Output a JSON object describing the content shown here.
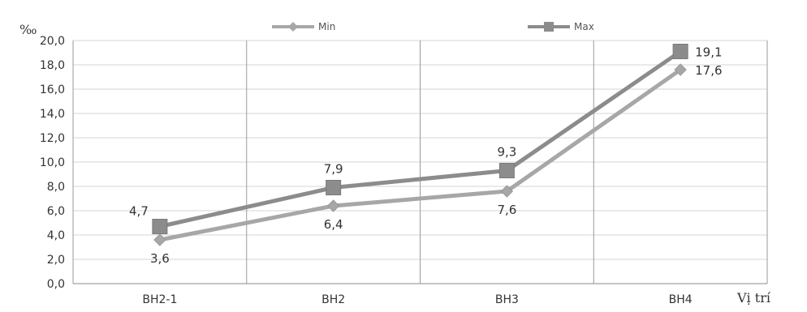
{
  "chart_data": {
    "type": "line",
    "ylabel": "‰",
    "xlabel": "Vị trí",
    "categories": [
      "BH2-1",
      "BH2",
      "BH3",
      "BH4"
    ],
    "ylim": [
      0,
      20
    ],
    "ytick_step": 2,
    "ytick_labels": [
      "0,0",
      "2,0",
      "4,0",
      "6,0",
      "8,0",
      "10,0",
      "12,0",
      "14,0",
      "16,0",
      "18,0",
      "20,0"
    ],
    "grid": true,
    "legend": "top",
    "series": [
      {
        "name": "Min",
        "marker": "diamond",
        "color": "#a7a7a7",
        "values": [
          3.6,
          6.4,
          7.6,
          17.6
        ],
        "labels": [
          "3,6",
          "6,4",
          "7,6",
          "17,6"
        ]
      },
      {
        "name": "Max",
        "marker": "square",
        "color": "#8c8c8c",
        "values": [
          4.7,
          7.9,
          9.3,
          19.1
        ],
        "labels": [
          "4,7",
          "7,9",
          "9,3",
          "19,1"
        ]
      }
    ]
  }
}
